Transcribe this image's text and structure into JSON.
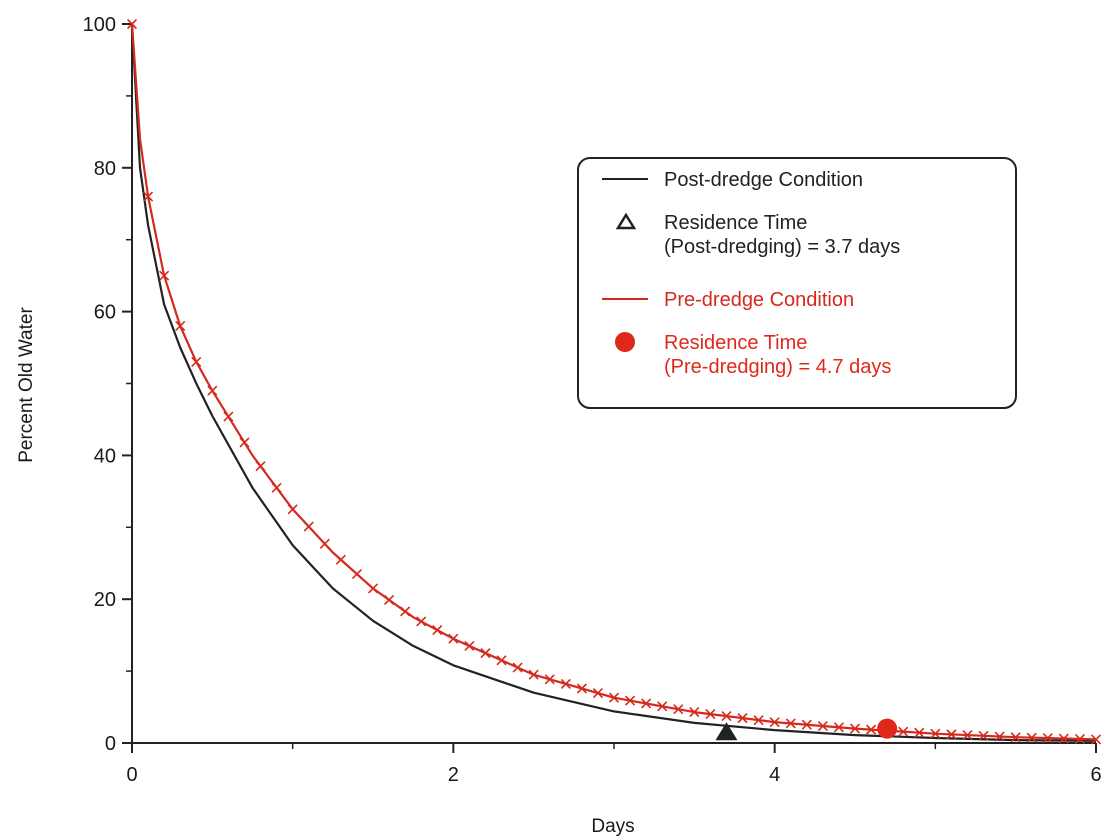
{
  "chart_data": {
    "type": "line",
    "title": "",
    "xlabel": "Days",
    "ylabel": "Percent Old Water",
    "xlim": [
      0,
      6
    ],
    "ylim": [
      0,
      100
    ],
    "xticks": [
      0,
      2,
      4,
      6
    ],
    "yticks": [
      0,
      20,
      40,
      60,
      80,
      100
    ],
    "grid": false,
    "legend_position": "top-right",
    "series": [
      {
        "name": "Post-dredge Condition",
        "color": "#222222",
        "marker": "none",
        "x": [
          0,
          0.05,
          0.1,
          0.2,
          0.3,
          0.4,
          0.5,
          0.75,
          1.0,
          1.25,
          1.5,
          1.75,
          2.0,
          2.5,
          3.0,
          3.5,
          4.0,
          4.5,
          5.0,
          5.5,
          6.0
        ],
        "y": [
          100,
          80,
          72,
          61,
          55,
          50,
          45.5,
          35.5,
          27.5,
          21.5,
          17,
          13.5,
          10.8,
          7,
          4.4,
          2.8,
          1.8,
          1.1,
          0.7,
          0.4,
          0.3
        ]
      },
      {
        "name": "Pre-dredge Condition",
        "color": "#d42a1e",
        "marker": "x",
        "x": [
          0,
          0.05,
          0.1,
          0.2,
          0.3,
          0.4,
          0.5,
          0.75,
          1.0,
          1.25,
          1.5,
          1.75,
          2.0,
          2.5,
          3.0,
          3.5,
          4.0,
          4.5,
          5.0,
          5.5,
          6.0
        ],
        "y": [
          100,
          84,
          76,
          65,
          58,
          53,
          49,
          40,
          32.5,
          26.5,
          21.5,
          17.5,
          14.5,
          9.5,
          6.3,
          4.3,
          2.9,
          2.0,
          1.3,
          0.8,
          0.5
        ]
      }
    ],
    "points": [
      {
        "name": "Residence Time (Post-dredging) = 3.7 days",
        "x": 3.7,
        "y": 1.5,
        "marker": "triangle",
        "color": "#222222"
      },
      {
        "name": "Residence Time (Pre-dredging) = 4.7 days",
        "x": 4.7,
        "y": 2.0,
        "marker": "circle",
        "color": "#e0281a"
      }
    ],
    "legend": {
      "entries": [
        {
          "kind": "line",
          "color": "#222222",
          "lines": [
            "Post-dredge Condition"
          ]
        },
        {
          "kind": "triangle",
          "color": "#222222",
          "lines": [
            "Residence Time",
            "(Post-dredging) = 3.7 days"
          ]
        },
        {
          "kind": "line",
          "color": "#d42a1e",
          "lines": [
            "Pre-dredge Condition"
          ]
        },
        {
          "kind": "circle",
          "color": "#e0281a",
          "lines": [
            "Residence Time",
            "(Pre-dredging) = 4.7 days"
          ]
        }
      ]
    }
  }
}
